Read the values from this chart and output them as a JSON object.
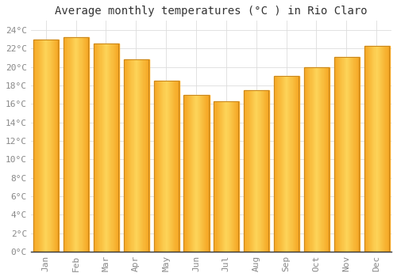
{
  "title": "Average monthly temperatures (°C ) in Rio Claro",
  "months": [
    "Jan",
    "Feb",
    "Mar",
    "Apr",
    "May",
    "Jun",
    "Jul",
    "Aug",
    "Sep",
    "Oct",
    "Nov",
    "Dec"
  ],
  "values": [
    23.0,
    23.2,
    22.5,
    20.8,
    18.5,
    17.0,
    16.3,
    17.5,
    19.0,
    20.0,
    21.1,
    22.3
  ],
  "bar_color_center": "#FDD55A",
  "bar_color_edge": "#F5A623",
  "bar_edge_color": "#C8851A",
  "ylim": [
    0,
    25
  ],
  "ytick_step": 2,
  "background_color": "#FFFFFF",
  "grid_color": "#DDDDDD",
  "title_fontsize": 10,
  "tick_fontsize": 8,
  "font_color": "#888888",
  "title_color": "#333333"
}
